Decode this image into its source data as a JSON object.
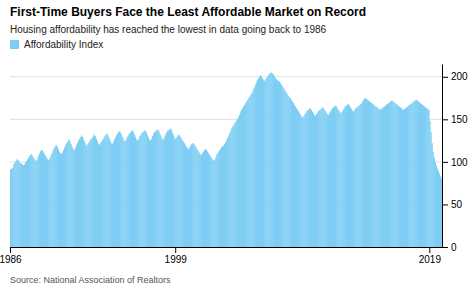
{
  "chart_data": {
    "type": "bar",
    "title": "First-Time Buyers Face the Least Affordable Market on Record",
    "subtitle": "Housing affordability has reached the lowest in data going back to 1986",
    "source": "Source: National Association of Realtors",
    "legend": "top-left",
    "grid": true,
    "ylim": [
      0,
      215
    ],
    "yticks": [
      0,
      50,
      100,
      150,
      200
    ],
    "categories": [
      "1986",
      null,
      null,
      null,
      null,
      null,
      null,
      null,
      null,
      null,
      null,
      null,
      null,
      null,
      null,
      null,
      null,
      null,
      null,
      null,
      null,
      null,
      null,
      null,
      null,
      null,
      null,
      null,
      null,
      null,
      null,
      null,
      null,
      null,
      null,
      null,
      null,
      null,
      null,
      null,
      null,
      null,
      null,
      null,
      null,
      null,
      null,
      null,
      null,
      null,
      null,
      null,
      null,
      null,
      null,
      null,
      null,
      null,
      null,
      null,
      null,
      null,
      null,
      null,
      null,
      null,
      null,
      null,
      null,
      null,
      null,
      null,
      null,
      null,
      null,
      null,
      null,
      null,
      null,
      null,
      null,
      null,
      null,
      null,
      null,
      null,
      null,
      null,
      null,
      null,
      null,
      null,
      null,
      null,
      null,
      null,
      null,
      null,
      null,
      null,
      null,
      null,
      null,
      null,
      null,
      null,
      null,
      null,
      null,
      null,
      null,
      null,
      null,
      null,
      null,
      null,
      null,
      null,
      null,
      null,
      null,
      null,
      null,
      null,
      null,
      null,
      null,
      null,
      null,
      null,
      null,
      null,
      null,
      null,
      null,
      null,
      null,
      null,
      null,
      null,
      null,
      null,
      null,
      null,
      null,
      null,
      null,
      null,
      null,
      null,
      null,
      null,
      null,
      null,
      null,
      null,
      "1999",
      null,
      null,
      null,
      null,
      null,
      null,
      null,
      null,
      null,
      null,
      null,
      null,
      null,
      null,
      null,
      null,
      null,
      null,
      null,
      null,
      null,
      null,
      null,
      null,
      null,
      null,
      null,
      null,
      null,
      null,
      null,
      null,
      null,
      null,
      null,
      null,
      null,
      null,
      null,
      null,
      null,
      null,
      null,
      null,
      null,
      null,
      null,
      null,
      null,
      null,
      null,
      null,
      null,
      null,
      null,
      null,
      null,
      null,
      null,
      null,
      null,
      null,
      null,
      null,
      null,
      null,
      null,
      null,
      null,
      null,
      null,
      null,
      null,
      null,
      null,
      null,
      null,
      null,
      null,
      null,
      null,
      null,
      null,
      null,
      null,
      null,
      null,
      null,
      null,
      null,
      null,
      null,
      null,
      null,
      null,
      null,
      null,
      null,
      null,
      null,
      null,
      null,
      null,
      null,
      null,
      null,
      null,
      null,
      null,
      null,
      null,
      null,
      null,
      null,
      null,
      null,
      null,
      null,
      null,
      null,
      null,
      null,
      null,
      null,
      null,
      null,
      null,
      null,
      null,
      null,
      null,
      null,
      null,
      null,
      null,
      null,
      null,
      null,
      null,
      null,
      null,
      null,
      null,
      null,
      null,
      null,
      null,
      null,
      null,
      null,
      null,
      null,
      null,
      null,
      null,
      null,
      null,
      null,
      null,
      null,
      null,
      null,
      null,
      null,
      null,
      null,
      null,
      null,
      null,
      null,
      null,
      null,
      null,
      null,
      null,
      null,
      null,
      null,
      null,
      null,
      null,
      null,
      null,
      null,
      null,
      null,
      null,
      null,
      null,
      null,
      null,
      null,
      null,
      null,
      null,
      null,
      null,
      null,
      null,
      null,
      null,
      null,
      null,
      null,
      null,
      null,
      null,
      null,
      null,
      null,
      null,
      null,
      null,
      null,
      null,
      null,
      null,
      null,
      null,
      null,
      null,
      null,
      null,
      null,
      null,
      null,
      null,
      null,
      null,
      null,
      null,
      null,
      null,
      null,
      null,
      null,
      null,
      null,
      null,
      "2019",
      null,
      null,
      null,
      null,
      null,
      null,
      null,
      null,
      null,
      null,
      null
    ],
    "series": [
      {
        "name": "Affordability Index",
        "color": "#7ecef4",
        "values": [
          91,
          92,
          93,
          97,
          99,
          101,
          103,
          102,
          100,
          99,
          98,
          97,
          96,
          97,
          99,
          101,
          103,
          105,
          107,
          109,
          108,
          106,
          104,
          102,
          101,
          103,
          106,
          109,
          112,
          114,
          113,
          111,
          109,
          107,
          105,
          103,
          102,
          104,
          107,
          110,
          113,
          116,
          118,
          120,
          118,
          115,
          112,
          110,
          109,
          111,
          114,
          117,
          120,
          122,
          124,
          126,
          124,
          121,
          118,
          115,
          114,
          116,
          119,
          122,
          125,
          127,
          129,
          131,
          129,
          126,
          123,
          120,
          119,
          121,
          123,
          125,
          127,
          128,
          130,
          132,
          130,
          127,
          124,
          121,
          120,
          122,
          124,
          126,
          128,
          130,
          132,
          133,
          131,
          128,
          125,
          122,
          121,
          123,
          126,
          129,
          131,
          133,
          135,
          136,
          134,
          131,
          128,
          125,
          124,
          126,
          129,
          131,
          133,
          134,
          136,
          137,
          135,
          132,
          129,
          126,
          125,
          127,
          130,
          132,
          134,
          135,
          136,
          137,
          135,
          132,
          129,
          126,
          125,
          127,
          130,
          133,
          135,
          136,
          137,
          138,
          136,
          133,
          130,
          127,
          126,
          128,
          131,
          134,
          136,
          137,
          138,
          139,
          137,
          134,
          131,
          128,
          127,
          129,
          131,
          132,
          130,
          128,
          126,
          124,
          122,
          120,
          118,
          116,
          115,
          117,
          119,
          121,
          122,
          121,
          119,
          117,
          115,
          113,
          111,
          109,
          108,
          110,
          112,
          114,
          115,
          114,
          112,
          110,
          108,
          106,
          104,
          102,
          101,
          103,
          106,
          109,
          111,
          113,
          115,
          117,
          118,
          119,
          121,
          123,
          125,
          128,
          131,
          134,
          137,
          140,
          142,
          144,
          146,
          148,
          150,
          152,
          155,
          158,
          161,
          163,
          165,
          167,
          169,
          171,
          173,
          175,
          177,
          179,
          181,
          184,
          187,
          190,
          193,
          196,
          198,
          200,
          202,
          200,
          198,
          196,
          195,
          197,
          199,
          201,
          203,
          204,
          205,
          204,
          203,
          201,
          199,
          197,
          196,
          195,
          194,
          192,
          190,
          188,
          186,
          184,
          182,
          180,
          178,
          176,
          175,
          173,
          171,
          169,
          167,
          165,
          163,
          161,
          159,
          157,
          155,
          153,
          152,
          154,
          156,
          158,
          160,
          161,
          162,
          163,
          161,
          159,
          157,
          155,
          154,
          156,
          158,
          160,
          161,
          162,
          163,
          164,
          162,
          160,
          158,
          156,
          155,
          157,
          159,
          161,
          163,
          164,
          165,
          166,
          164,
          162,
          160,
          158,
          157,
          159,
          161,
          163,
          165,
          166,
          167,
          168,
          166,
          164,
          162,
          160,
          159,
          161,
          163,
          164,
          165,
          166,
          167,
          168,
          170,
          172,
          174,
          175,
          174,
          173,
          172,
          171,
          170,
          169,
          168,
          167,
          166,
          165,
          164,
          163,
          162,
          161,
          162,
          163,
          164,
          165,
          166,
          167,
          168,
          169,
          170,
          171,
          172,
          171,
          170,
          169,
          168,
          167,
          166,
          165,
          164,
          163,
          162,
          161,
          162,
          163,
          164,
          165,
          166,
          167,
          168,
          169,
          170,
          171,
          172,
          173,
          172,
          171,
          170,
          169,
          168,
          167,
          166,
          165,
          164,
          163,
          162,
          161,
          148,
          135,
          122,
          112,
          105,
          100,
          96,
          92,
          89,
          86,
          83,
          80
        ]
      }
    ]
  }
}
